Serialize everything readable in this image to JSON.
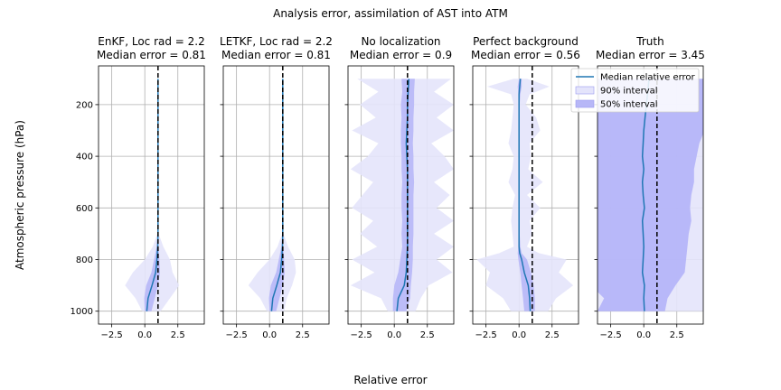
{
  "figure": {
    "suptitle": "Analysis error, assimilation of AST into ATM",
    "xlabel": "Relative error",
    "ylabel": "Atmospheric pressure (hPa)"
  },
  "legend": {
    "placement": "upper right of last panel",
    "items": [
      {
        "label": "Median relative error",
        "kind": "line",
        "color": "#1f77b4"
      },
      {
        "label": "90% interval",
        "kind": "patch",
        "color": "#e4e4fb"
      },
      {
        "label": "50% interval",
        "kind": "patch",
        "color": "#b7b7f7"
      }
    ]
  },
  "colors": {
    "median": "#1f77b4",
    "interval90": "#e4e4fb",
    "interval50": "#b7b7f7",
    "truth_interval50": "#b3b3f8",
    "reference": "#000000",
    "grid": "#b0b0b0"
  },
  "chart_data": [
    {
      "type": "area",
      "title": "EnKF, Loc rad = 2.2",
      "subtitle": "Median error = 0.81",
      "xlim": [
        -3.5,
        4.5
      ],
      "ylim": [
        1050,
        50
      ],
      "grid": true,
      "xticks": [
        -2.5,
        0.0,
        2.5
      ],
      "xtick_labels": [
        "−2.5",
        "0.0",
        "2.5"
      ],
      "yticks": [
        200,
        400,
        600,
        800,
        1000
      ],
      "ytick_labels": [
        "200",
        "400",
        "600",
        "800",
        "1000"
      ],
      "show_yticklabels": true,
      "reference_x": 1.0,
      "pressure": [
        100,
        200,
        300,
        400,
        500,
        600,
        700,
        750,
        800,
        850,
        900,
        950,
        1000
      ],
      "median": [
        1.0,
        1.0,
        1.0,
        1.0,
        1.0,
        1.0,
        1.0,
        0.98,
        0.92,
        0.82,
        0.55,
        0.25,
        0.15
      ],
      "p05": [
        1.0,
        1.0,
        1.0,
        1.0,
        1.0,
        1.0,
        0.95,
        0.6,
        0.0,
        -0.9,
        -1.5,
        -0.7,
        -0.2
      ],
      "p95": [
        1.0,
        1.0,
        1.0,
        1.0,
        1.0,
        1.0,
        1.05,
        1.4,
        1.9,
        2.1,
        2.6,
        1.9,
        1.2
      ],
      "p25": [
        1.0,
        1.0,
        1.0,
        1.0,
        1.0,
        1.0,
        1.0,
        0.9,
        0.7,
        0.5,
        0.1,
        -0.05,
        0.0
      ],
      "p75": [
        1.0,
        1.0,
        1.0,
        1.0,
        1.0,
        1.0,
        1.0,
        1.05,
        1.1,
        1.15,
        1.0,
        0.75,
        0.5
      ]
    },
    {
      "type": "area",
      "title": "LETKF, Loc rad = 2.2",
      "subtitle": "Median error = 0.81",
      "xlim": [
        -3.5,
        4.5
      ],
      "ylim": [
        1050,
        50
      ],
      "grid": true,
      "xticks": [
        -2.5,
        0.0,
        2.5
      ],
      "xtick_labels": [
        "−2.5",
        "0.0",
        "2.5"
      ],
      "yticks": [
        200,
        400,
        600,
        800,
        1000
      ],
      "ytick_labels": [
        "",
        "",
        "",
        "",
        ""
      ],
      "show_yticklabels": false,
      "reference_x": 1.0,
      "pressure": [
        100,
        200,
        300,
        400,
        500,
        600,
        700,
        750,
        800,
        850,
        900,
        950,
        1000
      ],
      "median": [
        1.0,
        1.0,
        1.0,
        1.0,
        1.0,
        1.0,
        1.0,
        0.98,
        0.92,
        0.82,
        0.55,
        0.25,
        0.15
      ],
      "p05": [
        1.0,
        1.0,
        1.0,
        1.0,
        1.0,
        1.0,
        0.95,
        0.6,
        0.0,
        -0.9,
        -1.6,
        -0.7,
        -0.2
      ],
      "p95": [
        1.0,
        1.0,
        1.0,
        1.0,
        1.0,
        1.0,
        1.05,
        1.4,
        1.9,
        2.0,
        1.7,
        1.3,
        1.1
      ],
      "p25": [
        1.0,
        1.0,
        1.0,
        1.0,
        1.0,
        1.0,
        1.0,
        0.9,
        0.7,
        0.5,
        0.1,
        -0.05,
        0.0
      ],
      "p75": [
        1.0,
        1.0,
        1.0,
        1.0,
        1.0,
        1.0,
        1.0,
        1.05,
        1.1,
        1.15,
        1.0,
        0.75,
        0.5
      ]
    },
    {
      "type": "area",
      "title": "No localization",
      "subtitle": "Median error = 0.9",
      "xlim": [
        -3.5,
        4.5
      ],
      "ylim": [
        1050,
        50
      ],
      "grid": true,
      "xticks": [
        -2.5,
        0.0,
        2.5
      ],
      "xtick_labels": [
        "−2.5",
        "0.0",
        "2.5"
      ],
      "yticks": [
        200,
        400,
        600,
        800,
        1000
      ],
      "ytick_labels": [
        "",
        "",
        "",
        "",
        ""
      ],
      "show_yticklabels": false,
      "reference_x": 1.0,
      "pressure": [
        100,
        150,
        200,
        250,
        300,
        350,
        400,
        450,
        500,
        550,
        600,
        650,
        700,
        750,
        800,
        850,
        900,
        950,
        1000
      ],
      "median": [
        1.1,
        1.05,
        1.0,
        1.0,
        0.95,
        0.9,
        0.95,
        1.0,
        1.0,
        1.0,
        1.0,
        1.0,
        1.0,
        1.0,
        0.95,
        0.9,
        0.75,
        0.3,
        0.2
      ],
      "p05": [
        -2.8,
        -1.2,
        -2.6,
        -1.4,
        -3.2,
        -1.2,
        -2.0,
        -3.3,
        -1.6,
        -2.4,
        -3.2,
        -1.6,
        -2.6,
        -1.3,
        -3.2,
        -1.5,
        -3.3,
        -1.0,
        -0.5
      ],
      "p95": [
        4.3,
        3.0,
        4.5,
        3.2,
        4.5,
        2.8,
        3.8,
        4.5,
        3.0,
        4.2,
        3.2,
        4.5,
        3.0,
        4.5,
        3.2,
        4.4,
        2.6,
        2.0,
        1.6
      ],
      "p25": [
        0.55,
        0.6,
        0.5,
        0.55,
        0.5,
        0.5,
        0.55,
        0.55,
        0.6,
        0.55,
        0.55,
        0.6,
        0.55,
        0.6,
        0.45,
        0.3,
        0.0,
        -0.1,
        -0.1
      ],
      "p75": [
        1.55,
        1.5,
        1.5,
        1.45,
        1.45,
        1.4,
        1.45,
        1.45,
        1.5,
        1.45,
        1.45,
        1.45,
        1.45,
        1.4,
        1.4,
        1.35,
        1.25,
        1.2,
        0.9
      ]
    },
    {
      "type": "area",
      "title": "Perfect background",
      "subtitle": "Median error = 0.56",
      "xlim": [
        -3.5,
        4.5
      ],
      "ylim": [
        1050,
        50
      ],
      "grid": true,
      "xticks": [
        -2.5,
        0.0,
        2.5
      ],
      "xtick_labels": [
        "−2.5",
        "0.0",
        "2.5"
      ],
      "yticks": [
        200,
        400,
        600,
        800,
        1000
      ],
      "ytick_labels": [
        "",
        "",
        "",
        "",
        ""
      ],
      "show_yticklabels": false,
      "reference_x": 1.0,
      "pressure": [
        100,
        130,
        160,
        200,
        250,
        300,
        350,
        400,
        450,
        500,
        550,
        600,
        650,
        700,
        750,
        775,
        800,
        850,
        900,
        950,
        1000
      ],
      "median": [
        0.1,
        0.05,
        0.0,
        0.0,
        0.0,
        0.0,
        0.0,
        0.0,
        0.0,
        0.0,
        0.0,
        0.0,
        0.0,
        0.0,
        0.0,
        0.05,
        0.2,
        0.4,
        0.7,
        0.8,
        0.85
      ],
      "p05": [
        -0.4,
        -2.4,
        -0.6,
        -0.4,
        -0.5,
        -0.6,
        -0.8,
        -0.4,
        -0.5,
        -0.8,
        -0.3,
        -0.5,
        -0.6,
        -0.5,
        -0.4,
        -1.5,
        -3.2,
        -2.2,
        -2.5,
        -1.2,
        -0.6
      ],
      "p95": [
        0.6,
        2.3,
        0.8,
        0.5,
        1.3,
        1.6,
        0.8,
        0.9,
        0.7,
        1.8,
        0.6,
        1.6,
        0.8,
        1.0,
        0.6,
        1.5,
        3.6,
        3.0,
        4.1,
        2.8,
        2.2
      ],
      "p25": [
        0.0,
        -0.1,
        -0.05,
        -0.05,
        -0.05,
        -0.05,
        -0.05,
        -0.05,
        -0.05,
        -0.05,
        -0.05,
        -0.05,
        -0.05,
        -0.05,
        -0.05,
        -0.1,
        -0.05,
        0.1,
        0.2,
        0.3,
        0.4
      ],
      "p75": [
        0.2,
        0.2,
        0.1,
        0.05,
        0.05,
        0.05,
        0.05,
        0.05,
        0.05,
        0.05,
        0.05,
        0.05,
        0.05,
        0.05,
        0.1,
        0.2,
        0.6,
        0.9,
        1.1,
        1.2,
        1.2
      ]
    },
    {
      "type": "area",
      "title": "Truth",
      "subtitle": "Median error = 3.45",
      "xlim": [
        -3.5,
        4.5
      ],
      "ylim": [
        1050,
        50
      ],
      "grid": true,
      "xticks": [
        -2.5,
        0.0,
        2.5
      ],
      "xtick_labels": [
        "−2.5",
        "0.0",
        "2.5"
      ],
      "yticks": [
        200,
        400,
        600,
        800,
        1000
      ],
      "ytick_labels": [
        "",
        "",
        "",
        "",
        ""
      ],
      "show_yticklabels": false,
      "reference_x": 1.0,
      "pressure": [
        100,
        150,
        200,
        250,
        300,
        350,
        400,
        450,
        500,
        550,
        600,
        650,
        700,
        750,
        800,
        850,
        900,
        950,
        1000
      ],
      "median": [
        0.4,
        0.3,
        0.2,
        0.1,
        0.0,
        -0.05,
        -0.1,
        0.0,
        -0.1,
        -0.05,
        0.05,
        -0.1,
        -0.05,
        0.0,
        -0.05,
        -0.1,
        0.05,
        0.0,
        0.05
      ],
      "p05": [
        -6.0,
        -6.0,
        -6.0,
        -6.0,
        -6.0,
        -6.0,
        -6.0,
        -6.0,
        -6.0,
        -6.0,
        -6.0,
        -6.0,
        -6.0,
        -6.0,
        -6.0,
        -6.0,
        -6.0,
        -6.0,
        -6.0
      ],
      "p95": [
        7.0,
        7.0,
        7.0,
        7.0,
        7.0,
        7.0,
        7.0,
        7.0,
        7.0,
        7.0,
        7.0,
        7.0,
        7.0,
        7.0,
        7.0,
        7.0,
        7.0,
        7.0,
        7.0
      ],
      "p25": [
        -4.5,
        -4.5,
        -4.5,
        -4.5,
        -4.5,
        -4.5,
        -4.5,
        -4.5,
        -4.5,
        -4.5,
        -4.5,
        -4.5,
        -4.5,
        -4.5,
        -4.5,
        -4.5,
        -4.0,
        -3.0,
        -3.5
      ],
      "p75": [
        5.0,
        5.0,
        4.5,
        4.8,
        4.6,
        4.2,
        4.0,
        3.8,
        3.8,
        3.6,
        3.5,
        3.6,
        3.4,
        3.3,
        3.2,
        3.1,
        2.4,
        1.8,
        1.6
      ]
    }
  ]
}
